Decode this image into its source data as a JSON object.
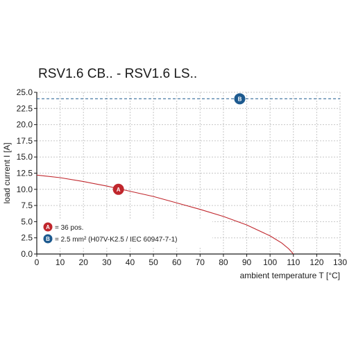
{
  "chart_data": {
    "type": "line",
    "title": "RSV1.6 CB.. - RSV1.6 LS..",
    "xlabel": "ambient temperature T [°C]",
    "ylabel": "load current I [A]",
    "xlim": [
      0,
      130
    ],
    "ylim": [
      0,
      25
    ],
    "x_ticks": [
      0,
      10,
      20,
      30,
      40,
      50,
      60,
      70,
      80,
      90,
      100,
      110,
      120,
      130
    ],
    "y_ticks": [
      "0.0",
      "2.5",
      "5.0",
      "7.5",
      "10.0",
      "12.5",
      "15.0",
      "17.5",
      "20.0",
      "22.5",
      "25.0"
    ],
    "grid": true,
    "series": [
      {
        "marker": "A",
        "color": "#c0262c",
        "style": "solid",
        "marker_at": [
          35,
          10.0
        ],
        "x": [
          0,
          10,
          20,
          30,
          40,
          50,
          60,
          70,
          80,
          90,
          100,
          105,
          108,
          110
        ],
        "y": [
          12.2,
          11.8,
          11.2,
          10.5,
          9.7,
          8.9,
          7.9,
          6.9,
          5.8,
          4.5,
          2.8,
          1.7,
          0.8,
          0.0
        ]
      },
      {
        "marker": "B",
        "color": "#1d5a8f",
        "style": "dashed",
        "marker_at": [
          87,
          24.0
        ],
        "x": [
          0,
          130
        ],
        "y": [
          24.0,
          24.0
        ]
      }
    ],
    "legend": {
      "placement": "bottom-left",
      "entries": [
        {
          "marker": "A",
          "text": "= 36 pos.",
          "color": "#c0262c"
        },
        {
          "marker": "B",
          "text": "= 2.5 mm² (H07V-K2.5 / IEC 60947-7-1)",
          "color": "#1d5a8f"
        }
      ]
    }
  }
}
